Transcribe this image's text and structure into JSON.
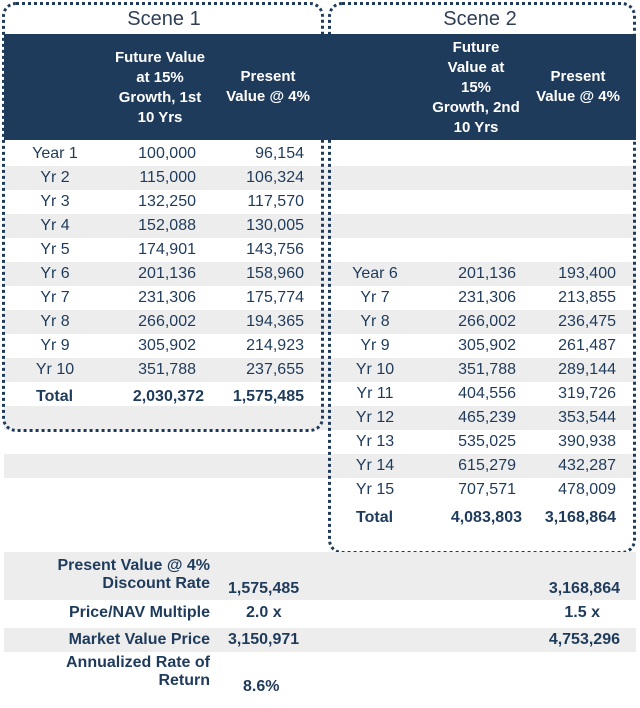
{
  "scene1": {
    "title": "Scene 1",
    "header_col1": [
      "Future Value",
      "at 15%",
      "Growth, 1st",
      "10 Yrs"
    ],
    "header_col2": [
      "Present",
      "Value @ 4%"
    ],
    "rows": [
      {
        "label": "Year 1",
        "fv": "100,000",
        "pv": "96,154"
      },
      {
        "label": "Yr 2",
        "fv": "115,000",
        "pv": "106,324"
      },
      {
        "label": "Yr 3",
        "fv": "132,250",
        "pv": "117,570"
      },
      {
        "label": "Yr 4",
        "fv": "152,088",
        "pv": "130,005"
      },
      {
        "label": "Yr 5",
        "fv": "174,901",
        "pv": "143,756"
      },
      {
        "label": "Yr 6",
        "fv": "201,136",
        "pv": "158,960"
      },
      {
        "label": "Yr 7",
        "fv": "231,306",
        "pv": "175,774"
      },
      {
        "label": "Yr 8",
        "fv": "266,002",
        "pv": "194,365"
      },
      {
        "label": "Yr 9",
        "fv": "305,902",
        "pv": "214,923"
      },
      {
        "label": "Yr 10",
        "fv": "351,788",
        "pv": "237,655"
      }
    ],
    "total": {
      "label": "Total",
      "fv": "2,030,372",
      "pv": "1,575,485"
    }
  },
  "scene2": {
    "title": "Scene 2",
    "header_col1": [
      "Future",
      "Value at",
      "15%",
      "Growth, 2nd",
      "10 Yrs"
    ],
    "header_col2": [
      "Present",
      "Value @ 4%"
    ],
    "rows": [
      {
        "label": "Year 6",
        "fv": "201,136",
        "pv": "193,400"
      },
      {
        "label": "Yr 7",
        "fv": "231,306",
        "pv": "213,855"
      },
      {
        "label": "Yr 8",
        "fv": "266,002",
        "pv": "236,475"
      },
      {
        "label": "Yr 9",
        "fv": "305,902",
        "pv": "261,487"
      },
      {
        "label": "Yr 10",
        "fv": "351,788",
        "pv": "289,144"
      },
      {
        "label": "Yr 11",
        "fv": "404,556",
        "pv": "319,726"
      },
      {
        "label": "Yr 12",
        "fv": "465,239",
        "pv": "353,544"
      },
      {
        "label": "Yr 13",
        "fv": "535,025",
        "pv": "390,938"
      },
      {
        "label": "Yr 14",
        "fv": "615,279",
        "pv": "432,287"
      },
      {
        "label": "Yr 15",
        "fv": "707,571",
        "pv": "478,009"
      }
    ],
    "total": {
      "label": "Total",
      "fv": "4,083,803",
      "pv": "3,168,864"
    }
  },
  "summary": {
    "pv_label_line1": "Present Value @ 4%",
    "pv_label_line2": "Discount Rate",
    "pv_scene1": "1,575,485",
    "pv_scene2": "3,168,864",
    "multiple_label": "Price/NAV Multiple",
    "multiple_scene1": "2.0 x",
    "multiple_scene2": "1.5 x",
    "market_label": "Market Value Price",
    "market_scene1": "3,150,971",
    "market_scene2": "4,753,296",
    "return_label_line1": "Annualized Rate of",
    "return_label_line2": "Return",
    "return_scene1": "8.6%"
  },
  "colors": {
    "header_bg": "#1f3b5b",
    "stripe": "#ededed",
    "text": "#1f3b5b"
  }
}
